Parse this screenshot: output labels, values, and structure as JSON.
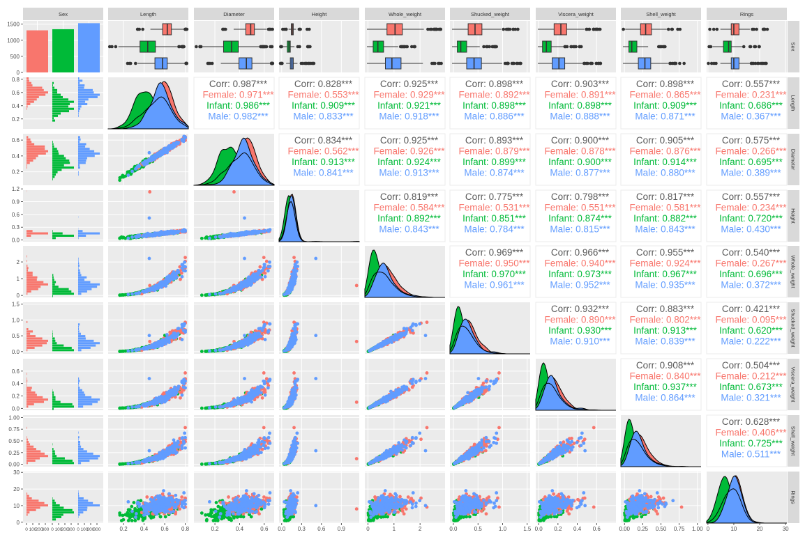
{
  "colors": {
    "Female": "#F8766D",
    "Infant": "#00BA38",
    "Male": "#619CFF",
    "overall": "#595959",
    "panel_bg": "#EBEBEB",
    "strip_bg": "#D9D9D9",
    "grid": "#FFFFFF"
  },
  "chart_data": {
    "type": "scatter",
    "plot_kind": "pairs-matrix",
    "variables": [
      "Sex",
      "Length",
      "Diameter",
      "Height",
      "Whole_weight",
      "Shucked_weight",
      "Viscera_weight",
      "Shell_weight",
      "Rings"
    ],
    "groups": [
      "Female",
      "Infant",
      "Male"
    ],
    "sex_counts": {
      "Female": 1307,
      "Infant": 1342,
      "Male": 1528
    },
    "axis_ticks": {
      "Length": [
        0.2,
        0.4,
        0.6,
        0.8
      ],
      "Diameter": [
        0.2,
        0.4,
        0.6
      ],
      "Height": [
        0.0,
        0.3,
        0.6,
        0.9
      ],
      "Whole_weight": [
        0,
        1,
        2
      ],
      "Shucked_weight": [
        0.0,
        0.5,
        1.0,
        1.5
      ],
      "Viscera_weight": [
        0.0,
        0.2,
        0.4,
        0.6
      ],
      "Shell_weight": [
        0.0,
        0.25,
        0.5,
        0.75,
        1.0
      ],
      "Rings": [
        0,
        10,
        20,
        30
      ]
    },
    "axis_tick_labels": {
      "Length": [
        "0.2",
        "0.4",
        "0.6",
        "0.8"
      ],
      "Diameter": [
        "0.2",
        "0.4",
        "0.6"
      ],
      "Height": [
        "0.0",
        "0.3",
        "0.6",
        "0.9"
      ],
      "Whole_weight": [
        "0",
        "1",
        "2"
      ],
      "Shucked_weight": [
        "0.0",
        "0.5",
        "1.0",
        "1.5"
      ],
      "Viscera_weight": [
        "0.0",
        "0.2",
        "0.4",
        "0.6"
      ],
      "Shell_weight": [
        "0.00",
        "0.25",
        "0.50",
        "0.75",
        "1.00"
      ],
      "Rings": [
        "0",
        "10",
        "20",
        "30"
      ]
    },
    "y_ticks": {
      "Sex": [
        0,
        500,
        1000,
        1500
      ],
      "Length": [
        0.2,
        0.4,
        0.6,
        0.8
      ],
      "Diameter": [
        0.2,
        0.4,
        0.6
      ],
      "Height": [
        0.0,
        0.3,
        0.6,
        0.9,
        1.2
      ],
      "Whole_weight": [
        0,
        1,
        2
      ],
      "Shucked_weight": [
        0.0,
        0.5,
        1.0,
        1.5
      ],
      "Viscera_weight": [
        0.0,
        0.2,
        0.4,
        0.6
      ],
      "Shell_weight": [
        0.0,
        0.25,
        0.5,
        0.75,
        1.0
      ],
      "Rings": [
        0,
        10,
        20,
        30
      ]
    },
    "y_tick_labels": {
      "Sex": [
        "0",
        "500",
        "1000",
        "1500"
      ],
      "Length": [
        "0.2",
        "0.4",
        "0.6",
        "0.8"
      ],
      "Diameter": [
        "0.2",
        "0.4",
        "0.6"
      ],
      "Height": [
        "0.0",
        "0.3",
        "0.6",
        "0.9",
        "1.2"
      ],
      "Whole_weight": [
        "0",
        "1",
        "2"
      ],
      "Shucked_weight": [
        "0.0",
        "0.5",
        "1.0",
        "1.5"
      ],
      "Viscera_weight": [
        "0.0",
        "0.2",
        "0.4",
        "0.6"
      ],
      "Shell_weight": [
        "0.00",
        "0.25",
        "0.50",
        "0.75",
        "1.00"
      ],
      "Rings": [
        "0",
        "10",
        "20",
        "30"
      ]
    },
    "sex_hist_ticks": {
      "values": [
        0,
        100,
        200,
        300
      ],
      "labels": [
        "0",
        "100",
        "200",
        "300"
      ]
    },
    "ranges": {
      "Length": [
        0.05,
        0.83
      ],
      "Diameter": [
        0.03,
        0.68
      ],
      "Height": [
        -0.04,
        1.17
      ],
      "Whole_weight": [
        -0.12,
        2.96
      ],
      "Shucked_weight": [
        -0.07,
        1.56
      ],
      "Viscera_weight": [
        -0.03,
        0.8
      ],
      "Shell_weight": [
        -0.05,
        1.05
      ],
      "Rings": [
        -0.5,
        30.5
      ],
      "Sex": [
        0,
        1600
      ]
    },
    "boxplots": {
      "Length": {
        "Female": [
          0.58,
          0.625,
          0.665
        ],
        "Infant": [
          0.36,
          0.435,
          0.51
        ],
        "Male": [
          0.505,
          0.58,
          0.625
        ]
      },
      "Diameter": {
        "Female": [
          0.45,
          0.49,
          0.52
        ],
        "Infant": [
          0.27,
          0.335,
          0.39
        ],
        "Male": [
          0.395,
          0.455,
          0.5
        ]
      },
      "Height": {
        "Female": [
          0.145,
          0.16,
          0.175
        ],
        "Infant": [
          0.085,
          0.11,
          0.13
        ],
        "Male": [
          0.13,
          0.155,
          0.175
        ]
      },
      "Whole_weight": {
        "Female": [
          0.73,
          1.04,
          1.32
        ],
        "Infant": [
          0.2,
          0.38,
          0.6
        ],
        "Male": [
          0.67,
          0.92,
          1.27
        ]
      },
      "Shucked_weight": {
        "Female": [
          0.3,
          0.44,
          0.58
        ],
        "Infant": [
          0.08,
          0.15,
          0.27
        ],
        "Male": [
          0.27,
          0.42,
          0.57
        ]
      },
      "Viscera_weight": {
        "Female": [
          0.16,
          0.23,
          0.29
        ],
        "Infant": [
          0.04,
          0.08,
          0.13
        ],
        "Male": [
          0.14,
          0.21,
          0.27
        ]
      },
      "Shell_weight": {
        "Female": [
          0.22,
          0.29,
          0.37
        ],
        "Infant": [
          0.06,
          0.1,
          0.17
        ],
        "Male": [
          0.19,
          0.28,
          0.36
        ]
      },
      "Rings": {
        "Female": [
          9,
          10,
          12
        ],
        "Infant": [
          6,
          8,
          9
        ],
        "Male": [
          9,
          10,
          12
        ]
      }
    },
    "correlations": [
      {
        "row": "Length",
        "col": "Diameter",
        "Corr": "0.987***",
        "Female": "0.971***",
        "Infant": "0.986***",
        "Male": "0.982***"
      },
      {
        "row": "Length",
        "col": "Height",
        "Corr": "0.828***",
        "Female": "0.553***",
        "Infant": "0.909***",
        "Male": "0.833***"
      },
      {
        "row": "Length",
        "col": "Whole_weight",
        "Corr": "0.925***",
        "Female": "0.929***",
        "Infant": "0.921***",
        "Male": "0.918***"
      },
      {
        "row": "Length",
        "col": "Shucked_weight",
        "Corr": "0.898***",
        "Female": "0.892***",
        "Infant": "0.898***",
        "Male": "0.886***"
      },
      {
        "row": "Length",
        "col": "Viscera_weight",
        "Corr": "0.903***",
        "Female": "0.891***",
        "Infant": "0.898***",
        "Male": "0.888***"
      },
      {
        "row": "Length",
        "col": "Shell_weight",
        "Corr": "0.898***",
        "Female": "0.865***",
        "Infant": "0.909***",
        "Male": "0.871***"
      },
      {
        "row": "Length",
        "col": "Rings",
        "Corr": "0.557***",
        "Female": "0.231***",
        "Infant": "0.686***",
        "Male": "0.367***"
      },
      {
        "row": "Diameter",
        "col": "Height",
        "Corr": "0.834***",
        "Female": "0.562***",
        "Infant": "0.913***",
        "Male": "0.841***"
      },
      {
        "row": "Diameter",
        "col": "Whole_weight",
        "Corr": "0.925***",
        "Female": "0.926***",
        "Infant": "0.924***",
        "Male": "0.913***"
      },
      {
        "row": "Diameter",
        "col": "Shucked_weight",
        "Corr": "0.893***",
        "Female": "0.879***",
        "Infant": "0.899***",
        "Male": "0.874***"
      },
      {
        "row": "Diameter",
        "col": "Viscera_weight",
        "Corr": "0.900***",
        "Female": "0.878***",
        "Infant": "0.900***",
        "Male": "0.877***"
      },
      {
        "row": "Diameter",
        "col": "Shell_weight",
        "Corr": "0.905***",
        "Female": "0.876***",
        "Infant": "0.914***",
        "Male": "0.880***"
      },
      {
        "row": "Diameter",
        "col": "Rings",
        "Corr": "0.575***",
        "Female": "0.266***",
        "Infant": "0.695***",
        "Male": "0.389***"
      },
      {
        "row": "Height",
        "col": "Whole_weight",
        "Corr": "0.819***",
        "Female": "0.584***",
        "Infant": "0.892***",
        "Male": "0.843***"
      },
      {
        "row": "Height",
        "col": "Shucked_weight",
        "Corr": "0.775***",
        "Female": "0.531***",
        "Infant": "0.851***",
        "Male": "0.784***"
      },
      {
        "row": "Height",
        "col": "Viscera_weight",
        "Corr": "0.798***",
        "Female": "0.551***",
        "Infant": "0.874***",
        "Male": "0.815***"
      },
      {
        "row": "Height",
        "col": "Shell_weight",
        "Corr": "0.817***",
        "Female": "0.581***",
        "Infant": "0.882***",
        "Male": "0.843***"
      },
      {
        "row": "Height",
        "col": "Rings",
        "Corr": "0.557***",
        "Female": "0.234***",
        "Infant": "0.720***",
        "Male": "0.430***"
      },
      {
        "row": "Whole_weight",
        "col": "Shucked_weight",
        "Corr": "0.969***",
        "Female": "0.950***",
        "Infant": "0.970***",
        "Male": "0.961***"
      },
      {
        "row": "Whole_weight",
        "col": "Viscera_weight",
        "Corr": "0.966***",
        "Female": "0.940***",
        "Infant": "0.973***",
        "Male": "0.952***"
      },
      {
        "row": "Whole_weight",
        "col": "Shell_weight",
        "Corr": "0.955***",
        "Female": "0.924***",
        "Infant": "0.967***",
        "Male": "0.935***"
      },
      {
        "row": "Whole_weight",
        "col": "Rings",
        "Corr": "0.540***",
        "Female": "0.267***",
        "Infant": "0.696***",
        "Male": "0.372***"
      },
      {
        "row": "Shucked_weight",
        "col": "Viscera_weight",
        "Corr": "0.932***",
        "Female": "0.890***",
        "Infant": "0.930***",
        "Male": "0.910***"
      },
      {
        "row": "Shucked_weight",
        "col": "Shell_weight",
        "Corr": "0.883***",
        "Female": "0.802***",
        "Infant": "0.913***",
        "Male": "0.839***"
      },
      {
        "row": "Shucked_weight",
        "col": "Rings",
        "Corr": "0.421***",
        "Female": "0.095***",
        "Infant": "0.620***",
        "Male": "0.222***"
      },
      {
        "row": "Viscera_weight",
        "col": "Shell_weight",
        "Corr": "0.908***",
        "Female": "0.840***",
        "Infant": "0.937***",
        "Male": "0.864***"
      },
      {
        "row": "Viscera_weight",
        "col": "Rings",
        "Corr": "0.504***",
        "Female": "0.212***",
        "Infant": "0.673***",
        "Male": "0.321***"
      },
      {
        "row": "Shell_weight",
        "col": "Rings",
        "Corr": "0.628***",
        "Female": "0.406***",
        "Infant": "0.725***",
        "Male": "0.511***"
      }
    ]
  }
}
